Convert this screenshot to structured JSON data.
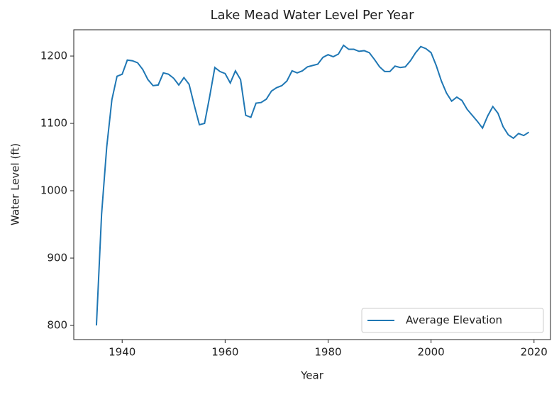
{
  "chart_data": {
    "type": "line",
    "title": "Lake Mead Water Level Per Year",
    "xlabel": "Year",
    "ylabel": "Water Level (ft)",
    "x": [
      1935,
      1936,
      1937,
      1938,
      1939,
      1940,
      1941,
      1942,
      1943,
      1944,
      1945,
      1946,
      1947,
      1948,
      1949,
      1950,
      1951,
      1952,
      1953,
      1954,
      1955,
      1956,
      1957,
      1958,
      1959,
      1960,
      1961,
      1962,
      1963,
      1964,
      1965,
      1966,
      1967,
      1968,
      1969,
      1970,
      1971,
      1972,
      1973,
      1974,
      1975,
      1976,
      1977,
      1978,
      1979,
      1980,
      1981,
      1982,
      1983,
      1984,
      1985,
      1986,
      1987,
      1988,
      1989,
      1990,
      1991,
      1992,
      1993,
      1994,
      1995,
      1996,
      1997,
      1998,
      1999,
      2000,
      2001,
      2002,
      2003,
      2004,
      2005,
      2006,
      2007,
      2008,
      2009,
      2010,
      2011,
      2012,
      2013,
      2014,
      2015,
      2016,
      2017,
      2018,
      2019
    ],
    "series": [
      {
        "name": "Average Elevation",
        "color": "#1f77b4",
        "values": [
          800,
          965,
          1065,
          1135,
          1170,
          1173,
          1194,
          1193,
          1190,
          1180,
          1165,
          1156,
          1157,
          1175,
          1173,
          1167,
          1157,
          1168,
          1158,
          1127,
          1098,
          1100,
          1140,
          1183,
          1177,
          1174,
          1160,
          1178,
          1165,
          1112,
          1109,
          1130,
          1131,
          1136,
          1148,
          1153,
          1156,
          1163,
          1178,
          1175,
          1178,
          1184,
          1186,
          1188,
          1198,
          1202,
          1199,
          1203,
          1216,
          1210,
          1210,
          1207,
          1208,
          1205,
          1195,
          1184,
          1177,
          1177,
          1185,
          1183,
          1184,
          1193,
          1205,
          1214,
          1211,
          1205,
          1186,
          1163,
          1145,
          1133,
          1139,
          1134,
          1121,
          1112,
          1103,
          1093,
          1111,
          1125,
          1115,
          1095,
          1083,
          1078,
          1085,
          1082,
          1087
        ]
      }
    ],
    "xlim": [
      1930.6,
      2023.2
    ],
    "xticks": [
      1940,
      1960,
      1980,
      2000,
      2020
    ],
    "ylim": [
      779,
      1239
    ],
    "yticks": [
      800,
      900,
      1000,
      1100,
      1200
    ],
    "legend": "lower right"
  }
}
